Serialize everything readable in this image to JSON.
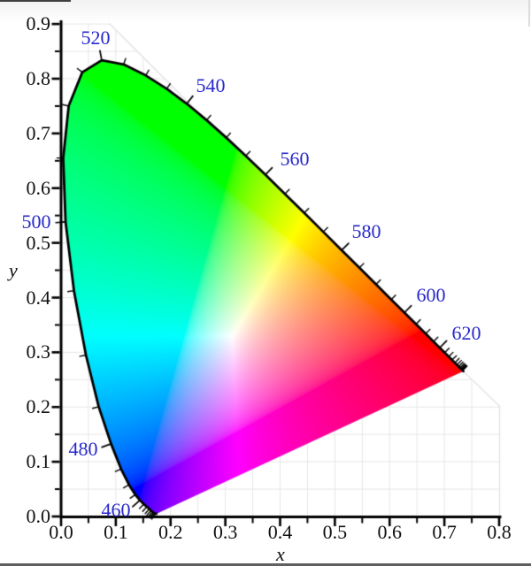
{
  "window": {
    "background": "#ffffff"
  },
  "chart_data": {
    "type": "area",
    "title": "",
    "xlabel": "x",
    "ylabel": "y",
    "xlim": [
      0,
      0.8
    ],
    "ylim": [
      0,
      0.9
    ],
    "grid": true,
    "grid_step": 0.05,
    "major_tick_step": 0.1,
    "minor_tick_step": 0.05,
    "x_tick_labels": [
      "0.0",
      "0.1",
      "0.2",
      "0.3",
      "0.4",
      "0.5",
      "0.6",
      "0.7",
      "0.8"
    ],
    "y_tick_labels": [
      "0.0",
      "0.1",
      "0.2",
      "0.3",
      "0.4",
      "0.5",
      "0.6",
      "0.7",
      "0.8",
      "0.9"
    ],
    "wavelength_labels": [
      460,
      480,
      500,
      520,
      540,
      560,
      580,
      600,
      620
    ],
    "wavelength_tick_step_nm": 5,
    "wavelength_tick_range_nm": [
      420,
      680
    ],
    "colors": {
      "wavelength_label": "#2828cc",
      "spectral_locus_stroke": "#000000",
      "grid_line": "#e6e6e6",
      "clip_bevel_line": "#e0e0e0",
      "axis": "#000000",
      "tick_label": "#111111"
    },
    "spectral_locus_xy": [
      [
        380,
        0.1741,
        0.005
      ],
      [
        385,
        0.174,
        0.005
      ],
      [
        390,
        0.1738,
        0.0049
      ],
      [
        395,
        0.1736,
        0.0049
      ],
      [
        400,
        0.1733,
        0.0048
      ],
      [
        405,
        0.173,
        0.0048
      ],
      [
        410,
        0.1726,
        0.0048
      ],
      [
        415,
        0.1721,
        0.0048
      ],
      [
        420,
        0.1714,
        0.0051
      ],
      [
        425,
        0.1703,
        0.0058
      ],
      [
        430,
        0.1689,
        0.0069
      ],
      [
        435,
        0.1669,
        0.0086
      ],
      [
        440,
        0.1644,
        0.0109
      ],
      [
        445,
        0.1611,
        0.0138
      ],
      [
        450,
        0.1566,
        0.0177
      ],
      [
        455,
        0.151,
        0.0227
      ],
      [
        460,
        0.144,
        0.0297
      ],
      [
        465,
        0.1355,
        0.0399
      ],
      [
        470,
        0.1241,
        0.0578
      ],
      [
        475,
        0.1096,
        0.0868
      ],
      [
        480,
        0.0913,
        0.1327
      ],
      [
        485,
        0.0687,
        0.2007
      ],
      [
        490,
        0.0454,
        0.295
      ],
      [
        495,
        0.0235,
        0.4127
      ],
      [
        500,
        0.0082,
        0.5384
      ],
      [
        505,
        0.0039,
        0.6548
      ],
      [
        510,
        0.0139,
        0.7502
      ],
      [
        515,
        0.0389,
        0.812
      ],
      [
        520,
        0.0743,
        0.8338
      ],
      [
        525,
        0.1142,
        0.8262
      ],
      [
        530,
        0.1547,
        0.8059
      ],
      [
        535,
        0.1929,
        0.7816
      ],
      [
        540,
        0.2296,
        0.7543
      ],
      [
        545,
        0.2658,
        0.7243
      ],
      [
        550,
        0.3016,
        0.6923
      ],
      [
        555,
        0.3373,
        0.6589
      ],
      [
        560,
        0.3731,
        0.6245
      ],
      [
        565,
        0.4087,
        0.5896
      ],
      [
        570,
        0.4441,
        0.5547
      ],
      [
        575,
        0.4788,
        0.5202
      ],
      [
        580,
        0.5125,
        0.4866
      ],
      [
        585,
        0.5448,
        0.4544
      ],
      [
        590,
        0.5752,
        0.4242
      ],
      [
        595,
        0.6029,
        0.3965
      ],
      [
        600,
        0.627,
        0.3725
      ],
      [
        605,
        0.6482,
        0.3514
      ],
      [
        610,
        0.6658,
        0.334
      ],
      [
        615,
        0.6801,
        0.3197
      ],
      [
        620,
        0.6915,
        0.3083
      ],
      [
        625,
        0.7006,
        0.2993
      ],
      [
        630,
        0.7079,
        0.292
      ],
      [
        635,
        0.714,
        0.2859
      ],
      [
        640,
        0.719,
        0.2809
      ],
      [
        645,
        0.723,
        0.277
      ],
      [
        650,
        0.726,
        0.274
      ],
      [
        655,
        0.7283,
        0.2717
      ],
      [
        660,
        0.73,
        0.27
      ],
      [
        665,
        0.7311,
        0.2689
      ],
      [
        670,
        0.732,
        0.268
      ],
      [
        675,
        0.7327,
        0.2673
      ],
      [
        680,
        0.7334,
        0.2666
      ],
      [
        685,
        0.734,
        0.266
      ],
      [
        690,
        0.7344,
        0.2656
      ],
      [
        695,
        0.7346,
        0.2654
      ],
      [
        700,
        0.7347,
        0.2653
      ]
    ]
  }
}
